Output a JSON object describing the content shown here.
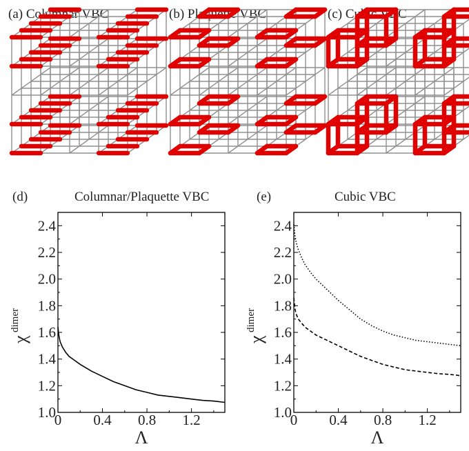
{
  "panels": {
    "a": {
      "title": "(a) Columnar VBC"
    },
    "b": {
      "title": "(b) Plaquette VBC"
    },
    "c": {
      "title": "(c) Cubic VBC"
    },
    "d": {
      "label": "(d)",
      "title": "Columnar/Plaquette VBC"
    },
    "e": {
      "label": "(e)",
      "title": "Cubic VBC"
    }
  },
  "colors": {
    "bond": "#e00000",
    "lattice": "#8f8f8f",
    "curve": "#000000"
  },
  "chart_data": [
    {
      "type": "line",
      "title": "Columnar/Plaquette VBC",
      "xlabel": "Λ",
      "ylabel": "χ",
      "ylabel_superscript": "dimer",
      "xlim": [
        0,
        1.5
      ],
      "ylim": [
        1.0,
        2.5
      ],
      "xticks": [
        "0",
        "0.4",
        "0.8",
        "1.2"
      ],
      "yticks": [
        "1.0",
        "1.2",
        "1.4",
        "1.6",
        "1.8",
        "2.0",
        "2.2",
        "2.4"
      ],
      "grid": false,
      "series": [
        {
          "style": "solid",
          "x": [
            0.0,
            0.005,
            0.01,
            0.02,
            0.04,
            0.07,
            0.1,
            0.15,
            0.2,
            0.3,
            0.4,
            0.5,
            0.6,
            0.7,
            0.8,
            0.9,
            1.0,
            1.1,
            1.2,
            1.3,
            1.4,
            1.5
          ],
          "y": [
            1.64,
            1.6,
            1.57,
            1.53,
            1.49,
            1.45,
            1.42,
            1.39,
            1.36,
            1.31,
            1.27,
            1.23,
            1.2,
            1.17,
            1.15,
            1.13,
            1.12,
            1.11,
            1.1,
            1.09,
            1.085,
            1.075
          ]
        }
      ]
    },
    {
      "type": "line",
      "title": "Cubic VBC",
      "xlabel": "Λ",
      "ylabel": "χ",
      "ylabel_superscript": "dimer",
      "xlim": [
        0,
        1.5
      ],
      "ylim": [
        1.0,
        2.5
      ],
      "xticks": [
        "0",
        "0.4",
        "0.8",
        "1.2"
      ],
      "yticks": [
        "1.0",
        "1.2",
        "1.4",
        "1.6",
        "1.8",
        "2.0",
        "2.2",
        "2.4"
      ],
      "grid": false,
      "series": [
        {
          "style": "dotted",
          "x": [
            0.0,
            0.005,
            0.01,
            0.02,
            0.04,
            0.07,
            0.1,
            0.15,
            0.2,
            0.3,
            0.4,
            0.5,
            0.6,
            0.7,
            0.8,
            0.9,
            1.0,
            1.1,
            1.2,
            1.3,
            1.4,
            1.5
          ],
          "y": [
            2.41,
            2.37,
            2.33,
            2.28,
            2.22,
            2.16,
            2.11,
            2.05,
            2.0,
            1.92,
            1.84,
            1.77,
            1.7,
            1.65,
            1.61,
            1.58,
            1.56,
            1.54,
            1.53,
            1.52,
            1.51,
            1.5
          ]
        },
        {
          "style": "dashed",
          "x": [
            0.0,
            0.005,
            0.01,
            0.02,
            0.04,
            0.07,
            0.1,
            0.15,
            0.2,
            0.3,
            0.4,
            0.5,
            0.6,
            0.7,
            0.8,
            0.9,
            1.0,
            1.1,
            1.2,
            1.3,
            1.4,
            1.5
          ],
          "y": [
            1.86,
            1.82,
            1.78,
            1.74,
            1.7,
            1.67,
            1.64,
            1.61,
            1.58,
            1.54,
            1.5,
            1.46,
            1.42,
            1.39,
            1.36,
            1.34,
            1.32,
            1.31,
            1.3,
            1.29,
            1.285,
            1.275
          ]
        }
      ]
    }
  ]
}
